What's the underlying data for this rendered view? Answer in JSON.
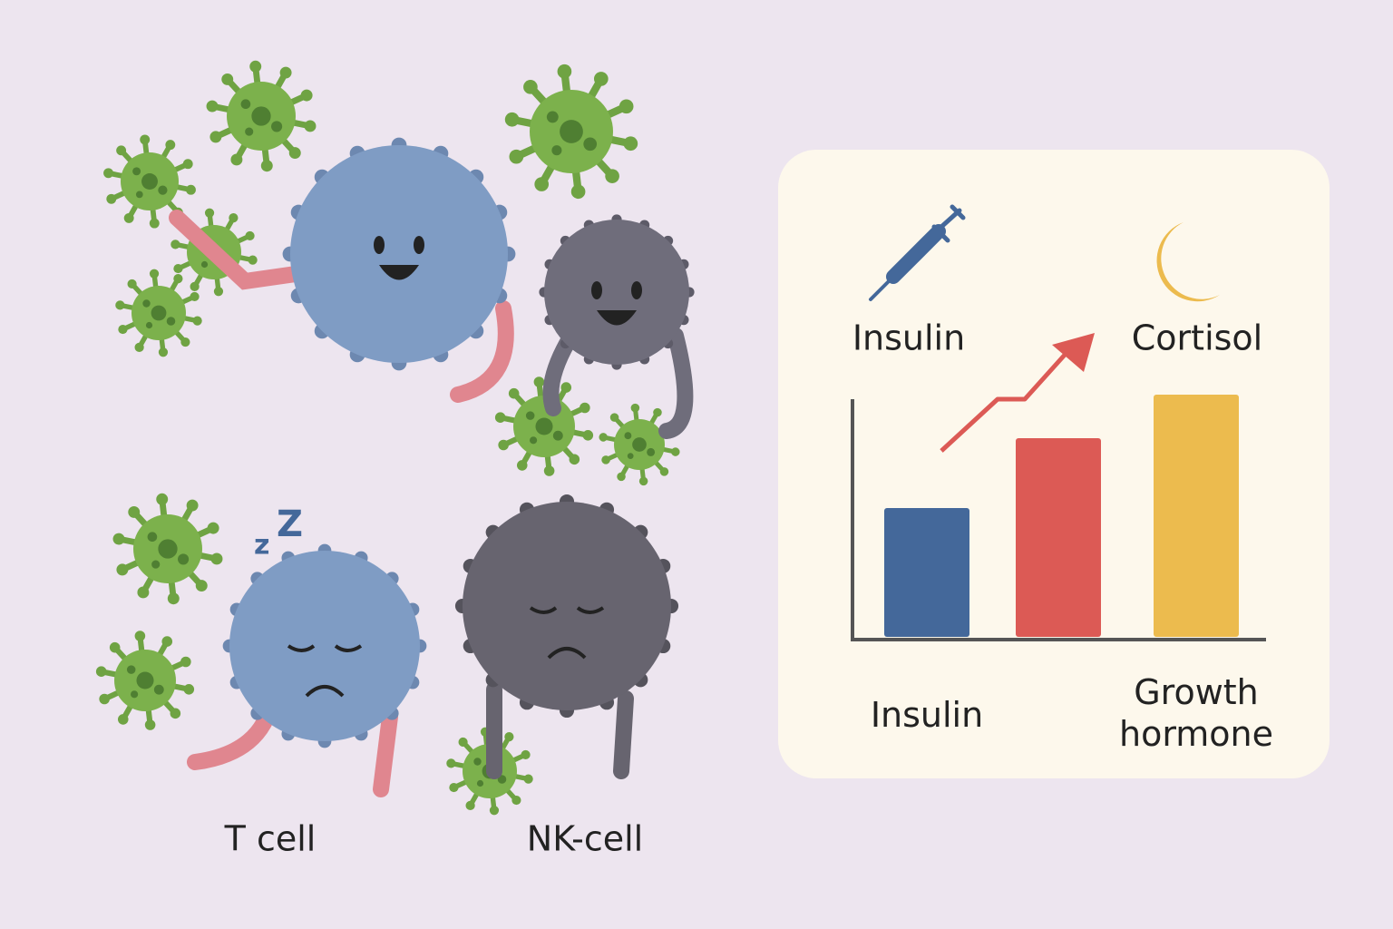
{
  "cells": {
    "labels": [
      "T cell",
      "NK-cell"
    ],
    "sleep_marks": [
      "z",
      "Z"
    ]
  },
  "chart_data": {
    "type": "bar",
    "annotations": [
      "Insulin",
      "Cortisol"
    ],
    "categories": [
      "Insulin",
      null,
      "Growth hormone"
    ],
    "values": [
      142,
      219,
      267
    ],
    "colors": [
      "#44689a",
      "#dc5a55",
      "#ecbb4e"
    ]
  }
}
